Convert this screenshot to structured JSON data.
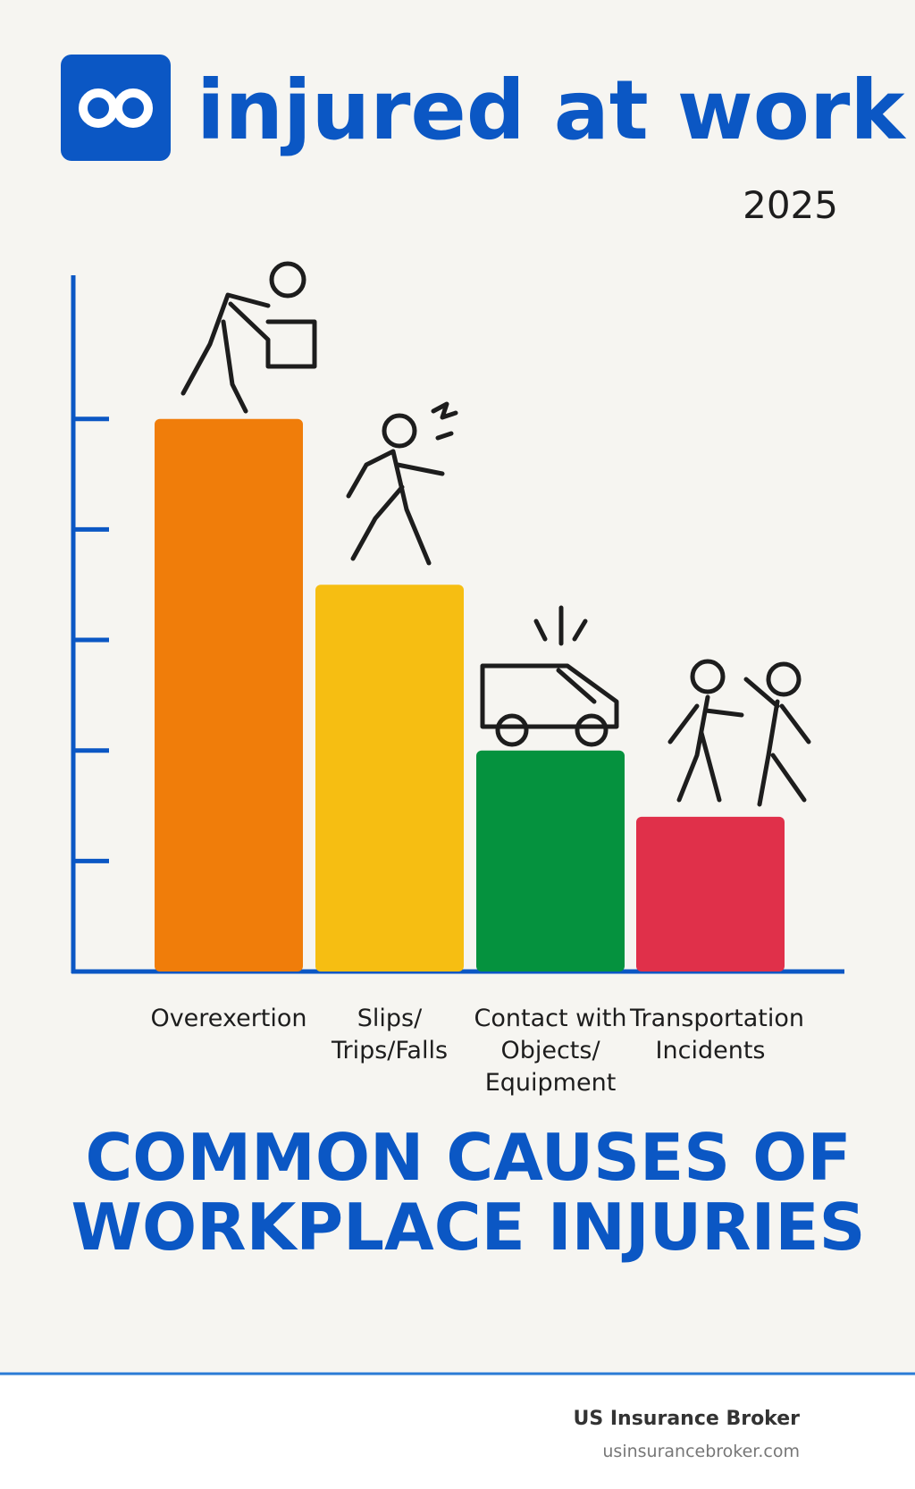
{
  "brand": "injured at work",
  "year": "2025",
  "chart_data": {
    "type": "bar",
    "title": "COMMON CAUSES OF WORKPLACE INJURIES",
    "categories": [
      "Overexertion",
      "Slips/ Trips/Falls",
      "Contact with Objects/ Equipment",
      "Transportation Incidents"
    ],
    "values": [
      5.0,
      3.5,
      2.0,
      1.4
    ],
    "colors": [
      "#f07d0a",
      "#f6be12",
      "#05923e",
      "#e0304a"
    ],
    "ylim": [
      0,
      6.3
    ],
    "yticks": [
      1,
      2,
      3,
      4,
      5
    ]
  },
  "footer": {
    "company": "US Insurance Broker",
    "url": "usinsurancebroker.com"
  }
}
